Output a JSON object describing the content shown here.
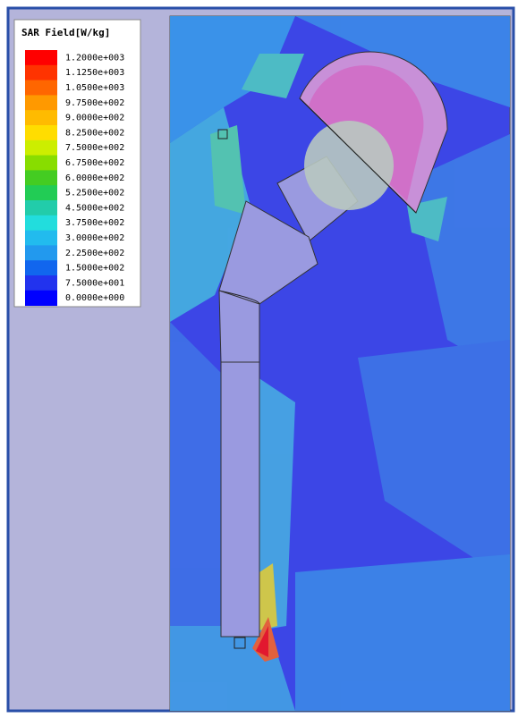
{
  "legend": {
    "title": "SAR Field[W/kg]",
    "items": [
      {
        "label": "1.2000e+003",
        "color": "#ff0000"
      },
      {
        "label": "1.1250e+003",
        "color": "#ff3300"
      },
      {
        "label": "1.0500e+003",
        "color": "#ff6600"
      },
      {
        "label": "9.7500e+002",
        "color": "#ff9900"
      },
      {
        "label": "9.0000e+002",
        "color": "#ffbb00"
      },
      {
        "label": "8.2500e+002",
        "color": "#ffdd00"
      },
      {
        "label": "7.5000e+002",
        "color": "#ccee00"
      },
      {
        "label": "6.7500e+002",
        "color": "#88dd00"
      },
      {
        "label": "6.0000e+002",
        "color": "#44cc22"
      },
      {
        "label": "5.2500e+002",
        "color": "#22cc55"
      },
      {
        "label": "4.5000e+002",
        "color": "#22ccaa"
      },
      {
        "label": "3.7500e+002",
        "color": "#22dddd"
      },
      {
        "label": "3.0000e+002",
        "color": "#22bbee"
      },
      {
        "label": "2.2500e+002",
        "color": "#2299ee"
      },
      {
        "label": "1.5000e+002",
        "color": "#1166ee"
      },
      {
        "label": "7.5000e+001",
        "color": "#2233ee"
      },
      {
        "label": "0.0000e+000",
        "color": "#0000ff"
      }
    ]
  }
}
